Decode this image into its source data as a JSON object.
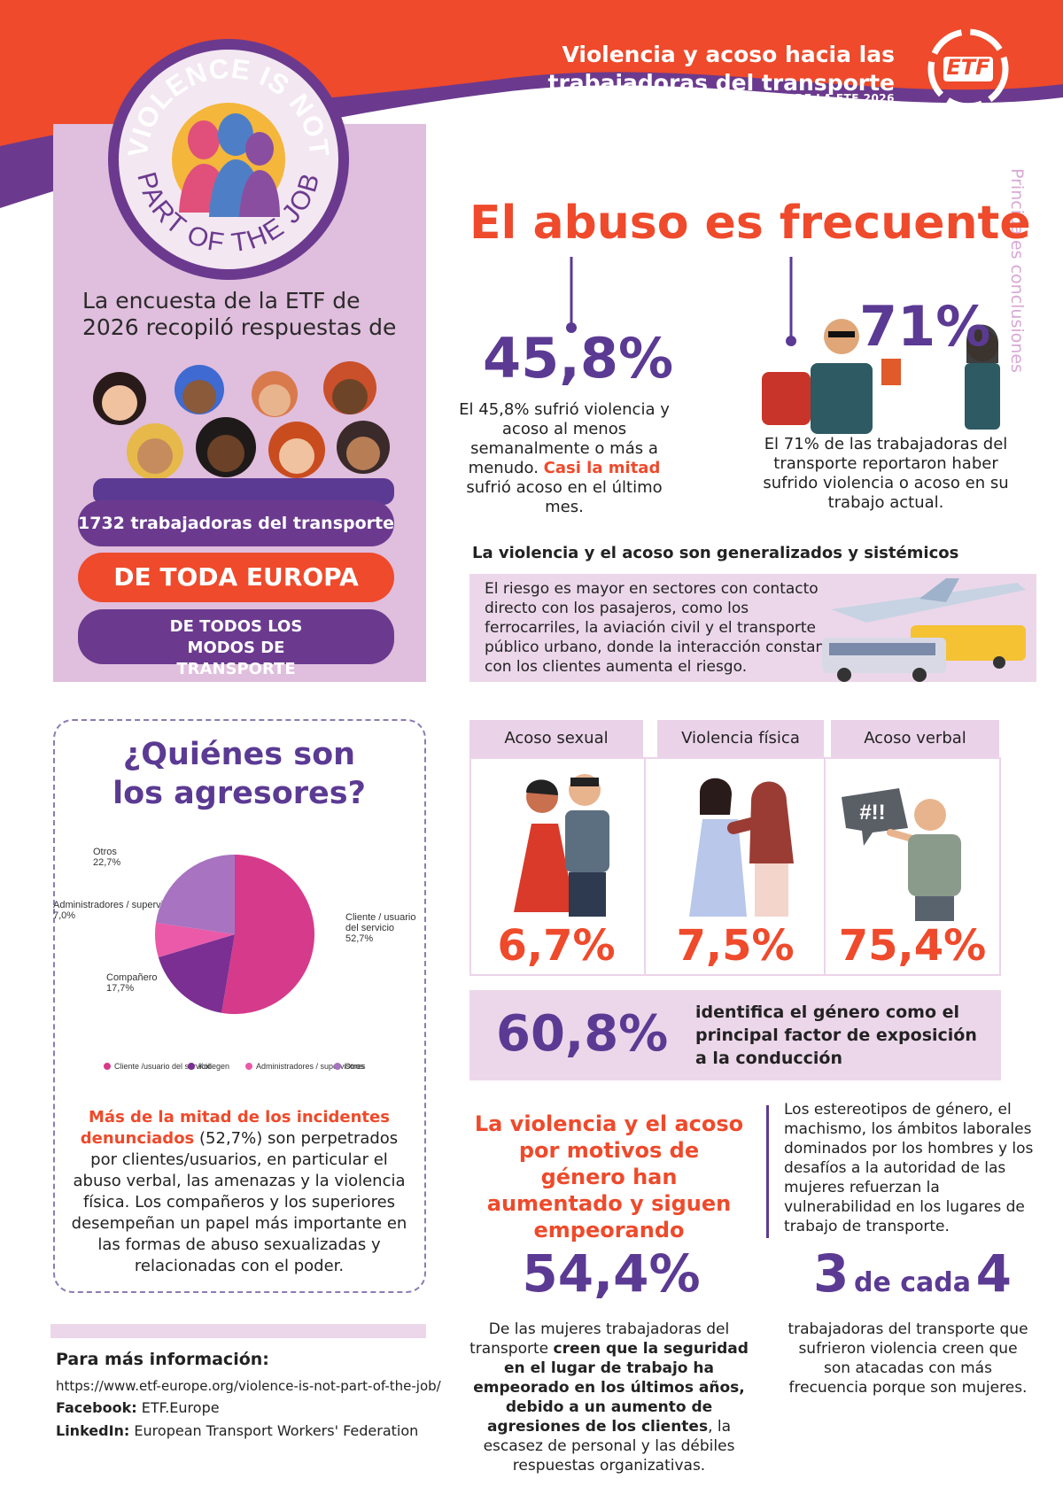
{
  "header": {
    "title": "Violencia y acoso hacia las trabajadoras del transporte",
    "subtitle": "ENCUESTA DE LA ETF 2026",
    "logo_text": "ETF",
    "badge_top": "VIOLENCE IS NOT",
    "badge_bottom": "PART OF THE JOB"
  },
  "side_label": "Principales conclusiones",
  "left_panel": {
    "intro": "La encuesta de la ETF de 2026 recopiló respuestas de",
    "pill_1": "1732 trabajadoras del transporte",
    "pill_2": "DE TODA EUROPA",
    "pill_3": "DE TODOS LOS MODOS DE TRANSPORTE"
  },
  "main_title": "El abuso es frecuente",
  "stat_1": {
    "value": "45,8%",
    "text_a": "El 45,8% sufrió violencia y acoso al menos semanalmente o más a menudo.",
    "highlight": "Casi la mitad",
    "text_b": "sufrió acoso en el último mes."
  },
  "stat_2": {
    "value": "71%",
    "text": "El 71% de las trabajadoras del transporte reportaron haber sufrido violencia o acoso en su trabajo actual."
  },
  "systemic": {
    "heading": "La violencia y el acoso son generalizados y sistémicos",
    "text": "El riesgo es mayor en sectores con contacto directo con los pasajeros, como los ferrocarriles, la aviación civil y el transporte público urbano, donde la interacción constante con los clientes aumenta el riesgo."
  },
  "aggressors": {
    "title": "¿Quiénes son los agresores?",
    "highlight": "Más de la mitad de los incidentes denunciados",
    "text_a": "(52,7%) son perpetrados por clientes/usuarios, en particular el abuso verbal, las amenazas y la violencia física.",
    "text_b": "Los compañeros y los superiores desempeñan un papel más importante en las formas de abuso sexualizadas y relacionadas con el poder."
  },
  "chart_data": {
    "type": "pie",
    "slices": [
      {
        "label": "Cliente / usuario del servicio",
        "value": 52.7,
        "pct_label": "52,7%",
        "color": "#d63a8b"
      },
      {
        "label": "Compañero",
        "value": 17.7,
        "pct_label": "17,7%",
        "color": "#7b2f92"
      },
      {
        "label": "Administradores / supervisores",
        "value": 7.0,
        "pct_label": "7,0%",
        "color": "#ea5aa8"
      },
      {
        "label": "Otros",
        "value": 22.7,
        "pct_label": "22,7%",
        "color": "#a873c0"
      }
    ],
    "legend": [
      "Cliente /usuario del servicio",
      "Kollegen",
      "Administradores / supervisores",
      "Otros"
    ],
    "legend_position": "bottom"
  },
  "abuse_types": [
    {
      "label": "Acoso sexual",
      "value": "6,7%"
    },
    {
      "label": "Violencia física",
      "value": "7,5%"
    },
    {
      "label": "Acoso verbal",
      "value": "75,4%"
    }
  ],
  "speech_bubble": "#!!",
  "gender": {
    "value": "60,8%",
    "text": "identifica el género como el principal factor de exposición a la conducción"
  },
  "trend": {
    "heading": "La violencia y el acoso por motivos de género han aumentado y siguen empeorando",
    "text": "Los estereotipos de género, el machismo, los ámbitos laborales dominados por los hombres y los desafíos a la autoridad de las mujeres refuerzan la vulnerabilidad en los lugares de trabajo de transporte."
  },
  "stat_3": {
    "value": "54,4%",
    "text_a": "De las mujeres trabajadoras del transporte",
    "bold": "creen que la seguridad en el lugar de trabajo ha empeorado en los últimos años, debido a un aumento de agresiones de los clientes",
    "text_b": ", la escasez de personal y las débiles respuestas organizativas."
  },
  "stat_4": {
    "num_a": "3",
    "mid": "de cada",
    "num_b": "4",
    "text": "trabajadoras del transporte que sufrieron violencia creen que son atacadas con más frecuencia porque son mujeres."
  },
  "footer": {
    "heading": "Para más información:",
    "url": "https://www.etf-europe.org/violence-is-not-part-of-the-job/",
    "facebook_label": "Facebook:",
    "facebook": "ETF.Europe",
    "linkedin_label": "LinkedIn:",
    "linkedin": "European Transport Workers' Federation"
  }
}
